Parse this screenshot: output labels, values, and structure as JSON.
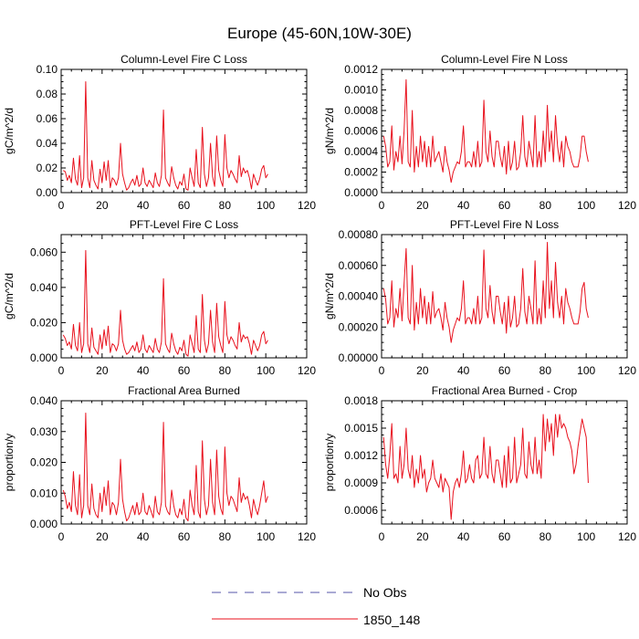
{
  "figure": {
    "title": "Europe (45-60N,10W-30E)"
  },
  "legend": {
    "entries": [
      {
        "label": "No Obs",
        "color": "#5555aa",
        "style": "dashed"
      },
      {
        "label": "1850_148",
        "color": "#e8111d",
        "style": "solid"
      }
    ]
  },
  "chart_data": [
    {
      "type": "line",
      "title": "Column-Level Fire C Loss",
      "ylabel": "gC/m^2/d",
      "xlim": [
        0,
        120
      ],
      "ylim": [
        0,
        0.1
      ],
      "xticks": [
        "0",
        "20",
        "40",
        "60",
        "80",
        "100",
        "120"
      ],
      "yticks": [
        "0.00",
        "0.02",
        "0.04",
        "0.06",
        "0.08",
        "0.10"
      ],
      "series": [
        {
          "name": "1850_148",
          "color": "#e8111d",
          "x_start": 1,
          "values": [
            0.018,
            0.017,
            0.01,
            0.014,
            0.008,
            0.028,
            0.011,
            0.006,
            0.03,
            0.004,
            0.012,
            0.09,
            0.012,
            0.004,
            0.026,
            0.01,
            0.006,
            0.003,
            0.019,
            0.008,
            0.025,
            0.01,
            0.026,
            0.004,
            0.012,
            0.01,
            0.006,
            0.012,
            0.04,
            0.015,
            0.008,
            0.002,
            0.004,
            0.008,
            0.011,
            0.006,
            0.014,
            0.005,
            0.007,
            0.02,
            0.008,
            0.005,
            0.01,
            0.007,
            0.004,
            0.016,
            0.008,
            0.005,
            0.014,
            0.067,
            0.012,
            0.008,
            0.005,
            0.021,
            0.012,
            0.006,
            0.003,
            0.009,
            0.006,
            0.015,
            0.003,
            0.002,
            0.02,
            0.012,
            0.005,
            0.035,
            0.008,
            0.004,
            0.053,
            0.015,
            0.005,
            0.012,
            0.04,
            0.013,
            0.005,
            0.046,
            0.018,
            0.01,
            0.005,
            0.047,
            0.02,
            0.012,
            0.018,
            0.015,
            0.011,
            0.008,
            0.03,
            0.013,
            0.02,
            0.016,
            0.018,
            0.012,
            0.003,
            0.015,
            0.01,
            0.006,
            0.011,
            0.019,
            0.022,
            0.012,
            0.015
          ]
        }
      ]
    },
    {
      "type": "line",
      "title": "Column-Level Fire N Loss",
      "ylabel": "gN/m^2/d",
      "xlim": [
        0,
        120
      ],
      "ylim": [
        0,
        0.0012
      ],
      "xticks": [
        "0",
        "20",
        "40",
        "60",
        "80",
        "100",
        "120"
      ],
      "yticks": [
        "0.0000",
        "0.0002",
        "0.0004",
        "0.0006",
        "0.0008",
        "0.0010",
        "0.0012"
      ],
      "series": [
        {
          "name": "1850_148",
          "color": "#e8111d",
          "x_start": 1,
          "values": [
            0.00055,
            0.00045,
            0.00025,
            0.0003,
            0.00065,
            0.00022,
            0.0004,
            0.0003,
            0.00055,
            0.00028,
            0.0006,
            0.0011,
            0.0003,
            0.00025,
            0.0008,
            0.0002,
            0.00045,
            0.00025,
            0.00055,
            0.0003,
            0.0005,
            0.00025,
            0.00045,
            0.00025,
            0.00055,
            0.0003,
            0.00035,
            0.0004,
            0.0003,
            0.0002,
            0.00045,
            0.0003,
            0.00022,
            0.0001,
            0.0002,
            0.00025,
            0.0003,
            0.00028,
            0.0004,
            0.00065,
            0.00025,
            0.0003,
            0.0003,
            0.00025,
            0.0004,
            0.00025,
            0.0005,
            0.00025,
            0.0003,
            0.0009,
            0.0004,
            0.0003,
            0.0006,
            0.00035,
            0.00025,
            0.0005,
            0.0005,
            0.00035,
            0.00025,
            0.00045,
            0.00018,
            0.0005,
            0.00022,
            0.0003,
            0.0005,
            0.00022,
            0.00025,
            0.0004,
            0.00075,
            0.00035,
            0.00025,
            0.0005,
            0.00038,
            0.00025,
            0.00075,
            0.00025,
            0.0004,
            0.00025,
            0.0006,
            0.0003,
            0.00085,
            0.0004,
            0.0006,
            0.0003,
            0.00075,
            0.00045,
            0.0003,
            0.0005,
            0.00025,
            0.00055,
            0.00045,
            0.0004,
            0.0003,
            0.00025,
            0.00025,
            0.00025,
            0.00035,
            0.00055,
            0.00055,
            0.0004,
            0.0003
          ]
        }
      ]
    },
    {
      "type": "line",
      "title": "PFT-Level Fire C Loss",
      "ylabel": "gC/m^2/d",
      "xlim": [
        0,
        120
      ],
      "ylim": [
        0,
        0.07
      ],
      "xticks": [
        "0",
        "20",
        "40",
        "60",
        "80",
        "100",
        "120"
      ],
      "yticks": [
        "0.000",
        "0.020",
        "0.040",
        "0.060"
      ],
      "series": [
        {
          "name": "1850_148",
          "color": "#e8111d",
          "x_start": 1,
          "values": [
            0.013,
            0.011,
            0.007,
            0.009,
            0.005,
            0.019,
            0.007,
            0.004,
            0.02,
            0.003,
            0.008,
            0.061,
            0.008,
            0.003,
            0.017,
            0.006,
            0.004,
            0.002,
            0.013,
            0.005,
            0.016,
            0.007,
            0.018,
            0.003,
            0.008,
            0.007,
            0.004,
            0.008,
            0.027,
            0.01,
            0.005,
            0.002,
            0.003,
            0.005,
            0.007,
            0.004,
            0.009,
            0.003,
            0.005,
            0.013,
            0.005,
            0.003,
            0.007,
            0.005,
            0.003,
            0.011,
            0.005,
            0.003,
            0.009,
            0.045,
            0.008,
            0.005,
            0.003,
            0.014,
            0.008,
            0.004,
            0.002,
            0.006,
            0.004,
            0.01,
            0.002,
            0.001,
            0.013,
            0.008,
            0.003,
            0.024,
            0.005,
            0.003,
            0.036,
            0.01,
            0.003,
            0.008,
            0.027,
            0.009,
            0.003,
            0.031,
            0.012,
            0.007,
            0.003,
            0.032,
            0.013,
            0.008,
            0.012,
            0.01,
            0.007,
            0.005,
            0.02,
            0.009,
            0.013,
            0.011,
            0.012,
            0.008,
            0.002,
            0.01,
            0.007,
            0.004,
            0.007,
            0.013,
            0.015,
            0.008,
            0.01
          ]
        }
      ]
    },
    {
      "type": "line",
      "title": "PFT-Level Fire N Loss",
      "ylabel": "gN/m^2/d",
      "xlim": [
        0,
        120
      ],
      "ylim": [
        0,
        0.0008
      ],
      "xticks": [
        "0",
        "20",
        "40",
        "60",
        "80",
        "100",
        "120"
      ],
      "yticks": [
        "0.00000",
        "0.00020",
        "0.00040",
        "0.00060",
        "0.00080"
      ],
      "series": [
        {
          "name": "1850_148",
          "color": "#e8111d",
          "x_start": 1,
          "values": [
            0.00045,
            0.00038,
            0.00022,
            0.00026,
            0.0005,
            0.0002,
            0.00032,
            0.00026,
            0.00045,
            0.00024,
            0.00048,
            0.00071,
            0.00026,
            0.00022,
            0.0006,
            0.00018,
            0.00036,
            0.00022,
            0.00045,
            0.00026,
            0.0004,
            0.00022,
            0.00036,
            0.00022,
            0.00043,
            0.00026,
            0.0003,
            0.00032,
            0.00026,
            0.00018,
            0.00036,
            0.00026,
            0.0002,
            0.0001,
            0.00018,
            0.00022,
            0.00026,
            0.00024,
            0.00032,
            0.0005,
            0.00022,
            0.00026,
            0.00026,
            0.00022,
            0.00032,
            0.00022,
            0.0004,
            0.00022,
            0.00026,
            0.0007,
            0.00032,
            0.00026,
            0.00047,
            0.0003,
            0.00022,
            0.0004,
            0.0004,
            0.0003,
            0.00022,
            0.00036,
            0.00016,
            0.0004,
            0.0002,
            0.00026,
            0.0004,
            0.0002,
            0.00022,
            0.00032,
            0.00058,
            0.0003,
            0.00022,
            0.0004,
            0.00032,
            0.00022,
            0.00063,
            0.00022,
            0.00032,
            0.00022,
            0.0005,
            0.00026,
            0.00075,
            0.00032,
            0.0005,
            0.00026,
            0.00062,
            0.00036,
            0.00026,
            0.0004,
            0.00022,
            0.00045,
            0.00036,
            0.00032,
            0.00026,
            0.00022,
            0.00022,
            0.00022,
            0.0003,
            0.00045,
            0.00049,
            0.00032,
            0.00026
          ]
        }
      ]
    },
    {
      "type": "line",
      "title": "Fractional Area Burned",
      "ylabel": "proportion/y",
      "xlim": [
        0,
        120
      ],
      "ylim": [
        0,
        0.04
      ],
      "xticks": [
        "0",
        "20",
        "40",
        "60",
        "80",
        "100",
        "120"
      ],
      "yticks": [
        "0.000",
        "0.010",
        "0.020",
        "0.030",
        "0.040"
      ],
      "series": [
        {
          "name": "1850_148",
          "color": "#e8111d",
          "x_start": 1,
          "values": [
            0.011,
            0.009,
            0.005,
            0.007,
            0.004,
            0.017,
            0.006,
            0.003,
            0.016,
            0.002,
            0.006,
            0.036,
            0.006,
            0.003,
            0.013,
            0.005,
            0.003,
            0.002,
            0.01,
            0.004,
            0.012,
            0.006,
            0.014,
            0.003,
            0.007,
            0.006,
            0.003,
            0.007,
            0.021,
            0.008,
            0.004,
            0.001,
            0.002,
            0.004,
            0.006,
            0.003,
            0.007,
            0.003,
            0.004,
            0.01,
            0.004,
            0.003,
            0.006,
            0.004,
            0.002,
            0.009,
            0.004,
            0.003,
            0.007,
            0.033,
            0.006,
            0.004,
            0.003,
            0.011,
            0.006,
            0.003,
            0.002,
            0.005,
            0.003,
            0.008,
            0.002,
            0.001,
            0.011,
            0.006,
            0.003,
            0.019,
            0.004,
            0.002,
            0.027,
            0.008,
            0.003,
            0.006,
            0.021,
            0.007,
            0.003,
            0.024,
            0.009,
            0.005,
            0.003,
            0.025,
            0.01,
            0.006,
            0.009,
            0.008,
            0.006,
            0.004,
            0.015,
            0.007,
            0.01,
            0.008,
            0.009,
            0.006,
            0.002,
            0.008,
            0.005,
            0.003,
            0.006,
            0.01,
            0.014,
            0.007,
            0.009
          ]
        }
      ]
    },
    {
      "type": "line",
      "title": "Fractional Area Burned - Crop",
      "ylabel": "proportion/y",
      "xlim": [
        0,
        120
      ],
      "ylim": [
        0.00045,
        0.0018
      ],
      "xticks": [
        "0",
        "20",
        "40",
        "60",
        "80",
        "100",
        "120"
      ],
      "yticks": [
        "0.0006",
        "0.0009",
        "0.0012",
        "0.0015",
        "0.0018"
      ],
      "series": [
        {
          "name": "1850_148",
          "color": "#e8111d",
          "x_start": 1,
          "values": [
            0.0014,
            0.0011,
            0.00095,
            0.0012,
            0.00155,
            0.00095,
            0.001,
            0.0009,
            0.0013,
            0.00095,
            0.0011,
            0.0015,
            0.00105,
            0.00095,
            0.0012,
            0.00085,
            0.00105,
            0.0009,
            0.0012,
            0.00095,
            0.00105,
            0.0008,
            0.0009,
            0.00095,
            0.00115,
            0.00095,
            0.0009,
            0.00085,
            0.001,
            0.0008,
            0.00095,
            0.0009,
            0.00085,
            0.0005,
            0.0008,
            0.0009,
            0.00095,
            0.00085,
            0.001,
            0.00125,
            0.0009,
            0.00095,
            0.0011,
            0.00095,
            0.0009,
            0.00115,
            0.0012,
            0.00095,
            0.001,
            0.0014,
            0.001,
            0.00095,
            0.0013,
            0.001,
            0.0009,
            0.00115,
            0.00115,
            0.001,
            0.00085,
            0.0012,
            0.00085,
            0.0013,
            0.0009,
            0.00095,
            0.0014,
            0.0009,
            0.001,
            0.0011,
            0.0015,
            0.001,
            0.00095,
            0.00135,
            0.0011,
            0.001,
            0.0014,
            0.001,
            0.00115,
            0.00095,
            0.00165,
            0.00125,
            0.0016,
            0.00135,
            0.00155,
            0.0012,
            0.00165,
            0.0014,
            0.00165,
            0.0015,
            0.00155,
            0.0015,
            0.0014,
            0.00135,
            0.00125,
            0.001,
            0.0011,
            0.0013,
            0.00145,
            0.0016,
            0.0015,
            0.0014,
            0.0009
          ]
        }
      ]
    }
  ]
}
